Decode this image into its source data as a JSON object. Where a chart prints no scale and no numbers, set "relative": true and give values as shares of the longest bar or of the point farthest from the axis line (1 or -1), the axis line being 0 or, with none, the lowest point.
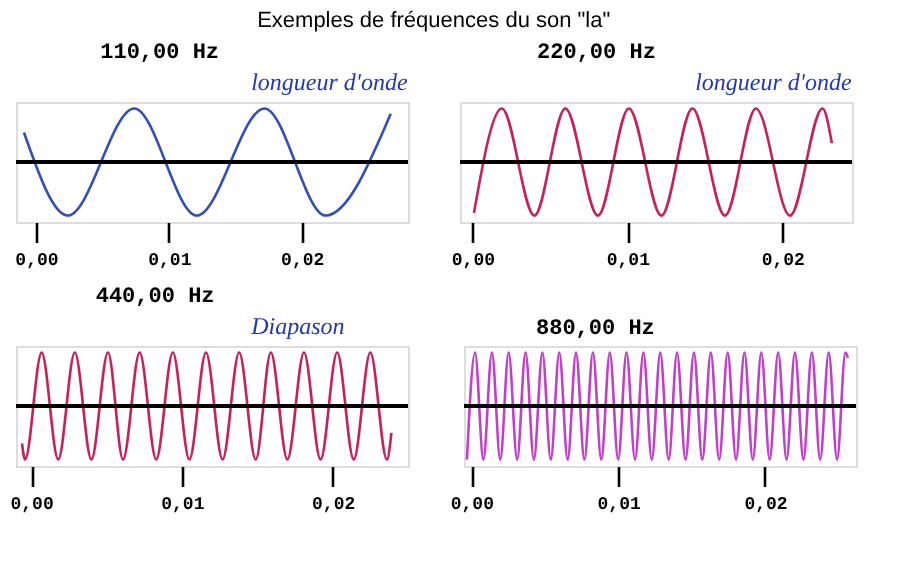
{
  "chart_data": [
    {
      "type": "line",
      "title": "Exemples de fréquences du son \"la\"",
      "subtitle": "110,00 Hz",
      "annotations": [
        "longueur d'onde"
      ],
      "relative": true,
      "marker": "none",
      "line_style": "solid",
      "xlim": [
        -0.0015,
        0.028
      ],
      "xticks": [
        {
          "value": 0,
          "label": "0,00"
        },
        {
          "value": 0.01,
          "label": "0,01"
        },
        {
          "value": 0.02,
          "label": "0,02"
        }
      ],
      "series": [
        {
          "color": "#3050b8",
          "x": [
            -0.0009,
            0.0024,
            0.0074,
            0.0121,
            0.0172,
            0.0218,
            0.0267
          ],
          "values": [
            0.55,
            -1,
            1,
            -1,
            1,
            -1,
            0.9
          ]
        }
      ]
    },
    {
      "type": "line",
      "subtitle": "220,00 Hz",
      "annotations": [
        "longueur d'onde"
      ],
      "relative": true,
      "marker": "none",
      "line_style": "solid",
      "xlim": [
        -0.0008,
        0.0245
      ],
      "xticks": [
        {
          "value": 0,
          "label": "0,00"
        },
        {
          "value": 0.01,
          "label": "0,01"
        },
        {
          "value": 0.02,
          "label": "0,02"
        }
      ],
      "series": [
        {
          "color": "#c8205a",
          "x": [
            0.0001,
            0.0019,
            0.004,
            0.006,
            0.0081,
            0.0101,
            0.0122,
            0.0142,
            0.0163,
            0.0183,
            0.0205,
            0.0226,
            0.0232
          ],
          "values": [
            -0.95,
            1,
            -1,
            1,
            -1,
            1,
            -1,
            1,
            -1,
            1,
            -1,
            1,
            0.35
          ]
        }
      ]
    },
    {
      "type": "line",
      "subtitle": "440,00 Hz",
      "annotations": [
        "Diapason"
      ],
      "relative": true,
      "marker": "none",
      "line_style": "solid",
      "xlim": [
        -0.001,
        0.025
      ],
      "xticks": [
        {
          "value": 0,
          "label": "0,00"
        },
        {
          "value": 0.01,
          "label": "0,01"
        },
        {
          "value": 0.02,
          "label": "0,02"
        }
      ],
      "series": [
        {
          "color": "#c8205a",
          "x": [
            -0.0006,
            -0.0004,
            0.0007,
            0.0018,
            0.0029,
            0.004,
            0.0051,
            0.0061,
            0.0072,
            0.0083,
            0.0094,
            0.0105,
            0.0116,
            0.0127,
            0.0138,
            0.0149,
            0.0159,
            0.017,
            0.0181,
            0.0192,
            0.0203,
            0.0214,
            0.0225,
            0.0236,
            0.0239
          ],
          "values": [
            -0.7,
            -1,
            1,
            -1,
            1,
            -1,
            1,
            -1,
            1,
            -1,
            1,
            -1,
            1,
            -1,
            1,
            -1,
            1,
            -1,
            1,
            -1,
            1,
            -1,
            1,
            -1,
            -0.5
          ]
        }
      ]
    },
    {
      "type": "line",
      "subtitle": "880,00 Hz",
      "relative": true,
      "marker": "none",
      "line_style": "solid",
      "xlim": [
        -0.0005,
        0.0262
      ],
      "xticks": [
        {
          "value": 0,
          "label": "0,00"
        },
        {
          "value": 0.01,
          "label": "0,01"
        },
        {
          "value": 0.02,
          "label": "0,02"
        }
      ],
      "series": [
        {
          "color": "#c040c8",
          "x": [
            -0.0003,
            0.00025,
            0.00082,
            0.0014,
            0.00197,
            0.00254,
            0.00312,
            0.00369,
            0.00426,
            0.00484,
            0.00541,
            0.00599,
            0.00656,
            0.00713,
            0.0077,
            0.00828,
            0.00885,
            0.00943,
            0.01,
            0.01057,
            0.01115,
            0.01172,
            0.01229,
            0.01287,
            0.01344,
            0.01401,
            0.01459,
            0.01516,
            0.01573,
            0.01631,
            0.01688,
            0.01746,
            0.01803,
            0.0186,
            0.01917,
            0.01975,
            0.02032,
            0.0209,
            0.02147,
            0.02204,
            0.02262,
            0.02319,
            0.02376,
            0.02434,
            0.02491,
            0.02548,
            0.02565
          ],
          "values": [
            -1,
            1,
            -1,
            1,
            -1,
            1,
            -1,
            1,
            -1,
            1,
            -1,
            1,
            -1,
            1,
            -1,
            1,
            -1,
            1,
            -1,
            1,
            -1,
            1,
            -1,
            1,
            -1,
            1,
            -1,
            1,
            -1,
            1,
            -1,
            1,
            -1,
            1,
            -1,
            1,
            -1,
            1,
            -1,
            1,
            -1,
            1,
            -1,
            1,
            -1,
            1,
            0.9
          ]
        }
      ]
    }
  ]
}
